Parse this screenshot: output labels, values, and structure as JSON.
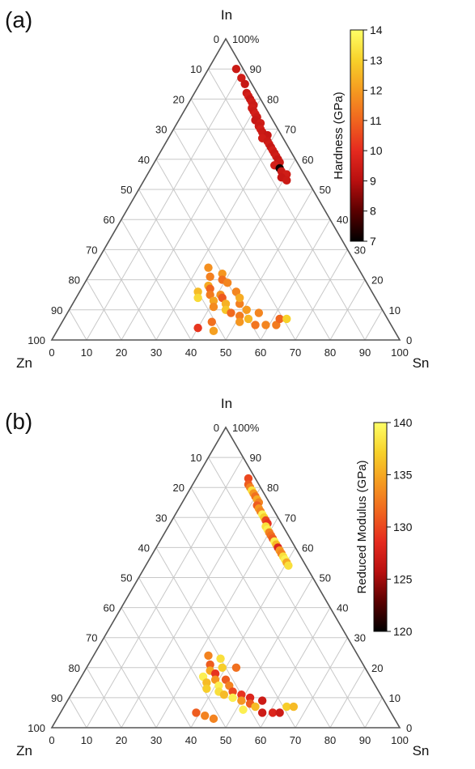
{
  "chart_data": [
    {
      "type": "scatter",
      "panel_label": "(a)",
      "ternary_axes": {
        "top": "In",
        "left": "Zn",
        "right": "Sn"
      },
      "left_ticks": [
        "0",
        "10",
        "20",
        "30",
        "40",
        "50",
        "60",
        "70",
        "80",
        "90",
        "100"
      ],
      "right_ticks": [
        "100%",
        "90",
        "80",
        "70",
        "60",
        "50",
        "40",
        "30",
        "20",
        "10",
        "0"
      ],
      "bottom_ticks": [
        "0",
        "10",
        "20",
        "30",
        "40",
        "50",
        "60",
        "70",
        "80",
        "90",
        "100"
      ],
      "grid": true,
      "colorbar": {
        "label": "Hardness (GPa)",
        "min": 7,
        "max": 14,
        "ticks": [
          "7",
          "8",
          "9",
          "10",
          "11",
          "12",
          "13",
          "14"
        ],
        "colors": [
          "#000000",
          "#5a0000",
          "#b80f0f",
          "#e52a1f",
          "#f0651f",
          "#f59b20",
          "#f7d12a",
          "#ffff66"
        ]
      },
      "points_note": "In, Sn fractions (%) with hardness value (GPa)",
      "points": [
        {
          "in": 90,
          "sn": 8,
          "v": 9.4
        },
        {
          "in": 87,
          "sn": 11,
          "v": 9.5
        },
        {
          "in": 85,
          "sn": 13,
          "v": 9.3
        },
        {
          "in": 82,
          "sn": 15,
          "v": 9.4
        },
        {
          "in": 81,
          "sn": 16,
          "v": 9.6
        },
        {
          "in": 80,
          "sn": 17,
          "v": 9.3
        },
        {
          "in": 79,
          "sn": 18,
          "v": 9.5
        },
        {
          "in": 78,
          "sn": 19,
          "v": 9.4
        },
        {
          "in": 77,
          "sn": 19,
          "v": 9.5
        },
        {
          "in": 76,
          "sn": 20,
          "v": 9.4
        },
        {
          "in": 75,
          "sn": 21,
          "v": 9.6
        },
        {
          "in": 74,
          "sn": 22,
          "v": 9.4
        },
        {
          "in": 73,
          "sn": 22,
          "v": 9.3
        },
        {
          "in": 72,
          "sn": 24,
          "v": 9.5
        },
        {
          "in": 71,
          "sn": 24,
          "v": 9.4
        },
        {
          "in": 70,
          "sn": 25,
          "v": 9.6
        },
        {
          "in": 69,
          "sn": 26,
          "v": 9.4
        },
        {
          "in": 68,
          "sn": 28,
          "v": 9.3
        },
        {
          "in": 67,
          "sn": 27,
          "v": 9.5
        },
        {
          "in": 66,
          "sn": 29,
          "v": 9.4
        },
        {
          "in": 65,
          "sn": 30,
          "v": 9.5
        },
        {
          "in": 64,
          "sn": 31,
          "v": 9.3
        },
        {
          "in": 63,
          "sn": 32,
          "v": 9.6
        },
        {
          "in": 62,
          "sn": 33,
          "v": 9.4
        },
        {
          "in": 61,
          "sn": 34,
          "v": 9.5
        },
        {
          "in": 60,
          "sn": 35,
          "v": 9.3
        },
        {
          "in": 59,
          "sn": 36,
          "v": 9.4
        },
        {
          "in": 58,
          "sn": 35,
          "v": 9.6
        },
        {
          "in": 57,
          "sn": 37,
          "v": 7.2
        },
        {
          "in": 56,
          "sn": 38,
          "v": 9.4
        },
        {
          "in": 55,
          "sn": 40,
          "v": 9.5
        },
        {
          "in": 54,
          "sn": 39,
          "v": 9.3
        },
        {
          "in": 53,
          "sn": 41,
          "v": 9.4
        },
        {
          "in": 24,
          "sn": 33,
          "v": 11.8
        },
        {
          "in": 21,
          "sn": 35,
          "v": 11.5
        },
        {
          "in": 22,
          "sn": 38,
          "v": 11.9
        },
        {
          "in": 20,
          "sn": 39,
          "v": 11.2
        },
        {
          "in": 18,
          "sn": 36,
          "v": 12.3
        },
        {
          "in": 17,
          "sn": 37,
          "v": 11.0
        },
        {
          "in": 16,
          "sn": 34,
          "v": 12.6
        },
        {
          "in": 15,
          "sn": 38,
          "v": 11.4
        },
        {
          "in": 15,
          "sn": 41,
          "v": 11.8
        },
        {
          "in": 14,
          "sn": 35,
          "v": 13.2
        },
        {
          "in": 13,
          "sn": 40,
          "v": 12.2
        },
        {
          "in": 14,
          "sn": 42,
          "v": 10.8
        },
        {
          "in": 16,
          "sn": 45,
          "v": 11.6
        },
        {
          "in": 12,
          "sn": 44,
          "v": 12.4
        },
        {
          "in": 11,
          "sn": 41,
          "v": 11.7
        },
        {
          "in": 10,
          "sn": 45,
          "v": 12.8
        },
        {
          "in": 12,
          "sn": 48,
          "v": 11.5
        },
        {
          "in": 9,
          "sn": 47,
          "v": 11.1
        },
        {
          "in": 10,
          "sn": 51,
          "v": 12.0
        },
        {
          "in": 8,
          "sn": 50,
          "v": 11.4
        },
        {
          "in": 7,
          "sn": 53,
          "v": 12.5
        },
        {
          "in": 9,
          "sn": 55,
          "v": 11.6
        },
        {
          "in": 6,
          "sn": 51,
          "v": 11.9
        },
        {
          "in": 5,
          "sn": 56,
          "v": 11.3
        },
        {
          "in": 5,
          "sn": 59,
          "v": 11.6
        },
        {
          "in": 5,
          "sn": 62,
          "v": 11.4
        },
        {
          "in": 7,
          "sn": 62,
          "v": 11.0
        },
        {
          "in": 7,
          "sn": 64,
          "v": 13.0
        },
        {
          "in": 6,
          "sn": 43,
          "v": 11.2
        },
        {
          "in": 4,
          "sn": 40,
          "v": 10.2
        },
        {
          "in": 3,
          "sn": 45,
          "v": 12.1
        },
        {
          "in": 14,
          "sn": 47,
          "v": 12.3
        },
        {
          "in": 19,
          "sn": 41,
          "v": 11.6
        }
      ]
    },
    {
      "type": "scatter",
      "panel_label": "(b)",
      "ternary_axes": {
        "top": "In",
        "left": "Zn",
        "right": "Sn"
      },
      "left_ticks": [
        "0",
        "10",
        "20",
        "30",
        "40",
        "50",
        "60",
        "70",
        "80",
        "90",
        "100"
      ],
      "right_ticks": [
        "100%",
        "90",
        "80",
        "70",
        "60",
        "50",
        "40",
        "30",
        "20",
        "10",
        "0"
      ],
      "bottom_ticks": [
        "0",
        "10",
        "20",
        "30",
        "40",
        "50",
        "60",
        "70",
        "80",
        "90",
        "100"
      ],
      "grid": true,
      "colorbar": {
        "label": "Reduced Modulus (GPa)",
        "min": 120,
        "max": 140,
        "ticks": [
          "120",
          "125",
          "130",
          "135",
          "140"
        ],
        "colors": [
          "#000000",
          "#5a0000",
          "#b80f0f",
          "#e52a1f",
          "#f0651f",
          "#f59b20",
          "#f7d12a",
          "#ffff66"
        ]
      },
      "points_note": "In, Sn fractions (%) with reduced modulus value (GPa)",
      "points": [
        {
          "in": 83,
          "sn": 15,
          "v": 130.0
        },
        {
          "in": 81,
          "sn": 16,
          "v": 131.0
        },
        {
          "in": 80,
          "sn": 17,
          "v": 133.0
        },
        {
          "in": 79,
          "sn": 18,
          "v": 138.0
        },
        {
          "in": 78,
          "sn": 19,
          "v": 134.0
        },
        {
          "in": 77,
          "sn": 20,
          "v": 132.0
        },
        {
          "in": 76,
          "sn": 21,
          "v": 135.0
        },
        {
          "in": 75,
          "sn": 22,
          "v": 133.0
        },
        {
          "in": 74,
          "sn": 22,
          "v": 131.0
        },
        {
          "in": 73,
          "sn": 23,
          "v": 134.0
        },
        {
          "in": 72,
          "sn": 24,
          "v": 133.0
        },
        {
          "in": 71,
          "sn": 25,
          "v": 139.0
        },
        {
          "in": 70,
          "sn": 26,
          "v": 137.0
        },
        {
          "in": 69,
          "sn": 27,
          "v": 130.0
        },
        {
          "in": 68,
          "sn": 28,
          "v": 129.0
        },
        {
          "in": 67,
          "sn": 28,
          "v": 138.0
        },
        {
          "in": 66,
          "sn": 29,
          "v": 139.0
        },
        {
          "in": 65,
          "sn": 30,
          "v": 133.0
        },
        {
          "in": 64,
          "sn": 31,
          "v": 132.0
        },
        {
          "in": 63,
          "sn": 32,
          "v": 131.0
        },
        {
          "in": 62,
          "sn": 33,
          "v": 139.0
        },
        {
          "in": 61,
          "sn": 34,
          "v": 136.0
        },
        {
          "in": 60,
          "sn": 35,
          "v": 128.0
        },
        {
          "in": 59,
          "sn": 36,
          "v": 134.0
        },
        {
          "in": 58,
          "sn": 37,
          "v": 133.0
        },
        {
          "in": 57,
          "sn": 38,
          "v": 138.0
        },
        {
          "in": 56,
          "sn": 39,
          "v": 139.0
        },
        {
          "in": 55,
          "sn": 40,
          "v": 135.0
        },
        {
          "in": 54,
          "sn": 41,
          "v": 138.0
        },
        {
          "in": 24,
          "sn": 33,
          "v": 133.0
        },
        {
          "in": 21,
          "sn": 35,
          "v": 131.0
        },
        {
          "in": 23,
          "sn": 37,
          "v": 138.0
        },
        {
          "in": 20,
          "sn": 39,
          "v": 137.0
        },
        {
          "in": 19,
          "sn": 36,
          "v": 135.0
        },
        {
          "in": 18,
          "sn": 38,
          "v": 129.0
        },
        {
          "in": 17,
          "sn": 35,
          "v": 139.0
        },
        {
          "in": 16,
          "sn": 39,
          "v": 134.0
        },
        {
          "in": 16,
          "sn": 42,
          "v": 131.0
        },
        {
          "in": 15,
          "sn": 37,
          "v": 136.0
        },
        {
          "in": 14,
          "sn": 41,
          "v": 139.0
        },
        {
          "in": 14,
          "sn": 44,
          "v": 133.0
        },
        {
          "in": 13,
          "sn": 38,
          "v": 137.0
        },
        {
          "in": 12,
          "sn": 42,
          "v": 138.0
        },
        {
          "in": 12,
          "sn": 46,
          "v": 130.0
        },
        {
          "in": 11,
          "sn": 44,
          "v": 136.0
        },
        {
          "in": 11,
          "sn": 49,
          "v": 129.0
        },
        {
          "in": 10,
          "sn": 47,
          "v": 139.0
        },
        {
          "in": 10,
          "sn": 52,
          "v": 128.0
        },
        {
          "in": 9,
          "sn": 50,
          "v": 134.0
        },
        {
          "in": 8,
          "sn": 53,
          "v": 131.0
        },
        {
          "in": 9,
          "sn": 56,
          "v": 127.0
        },
        {
          "in": 7,
          "sn": 55,
          "v": 136.0
        },
        {
          "in": 6,
          "sn": 52,
          "v": 139.0
        },
        {
          "in": 5,
          "sn": 58,
          "v": 127.0
        },
        {
          "in": 5,
          "sn": 61,
          "v": 128.0
        },
        {
          "in": 5,
          "sn": 63,
          "v": 127.0
        },
        {
          "in": 7,
          "sn": 64,
          "v": 137.0
        },
        {
          "in": 7,
          "sn": 66,
          "v": 136.0
        },
        {
          "in": 4,
          "sn": 42,
          "v": 133.0
        },
        {
          "in": 3,
          "sn": 45,
          "v": 133.0
        },
        {
          "in": 5,
          "sn": 39,
          "v": 131.0
        },
        {
          "in": 20,
          "sn": 43,
          "v": 132.0
        }
      ]
    }
  ]
}
